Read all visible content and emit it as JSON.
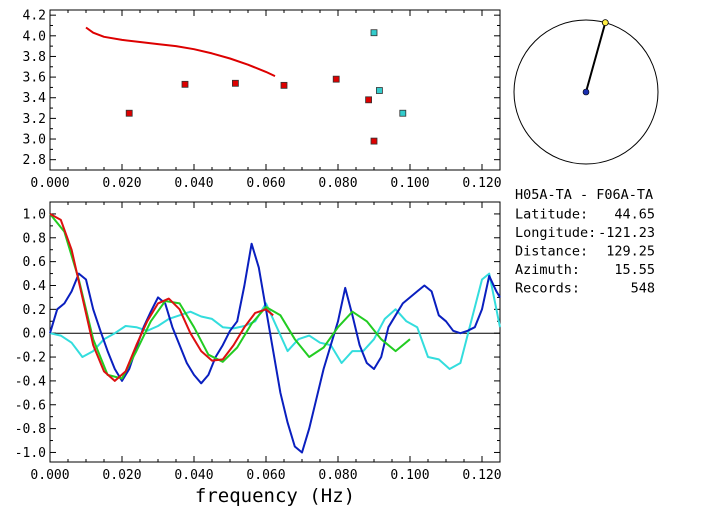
{
  "chart_data": [
    {
      "type": "scatter",
      "xlim": [
        0.0,
        0.125
      ],
      "ylim": [
        2.7,
        4.25
      ],
      "x_ticks": [
        "0.000",
        "0.020",
        "0.040",
        "0.060",
        "0.080",
        "0.100",
        "0.120"
      ],
      "y_ticks": [
        "2.8",
        "3.0",
        "3.2",
        "3.4",
        "3.6",
        "3.8",
        "4.0",
        "4.2"
      ],
      "series": [
        {
          "kind": "line",
          "color": "#dd0000",
          "x": [
            0.01,
            0.012,
            0.015,
            0.02,
            0.025,
            0.03,
            0.035,
            0.04,
            0.045,
            0.05,
            0.055,
            0.06,
            0.0625
          ],
          "y": [
            4.08,
            4.03,
            3.99,
            3.96,
            3.94,
            3.92,
            3.9,
            3.87,
            3.83,
            3.78,
            3.72,
            3.65,
            3.61
          ]
        },
        {
          "kind": "markers",
          "color": "#dd0000",
          "x": [
            0.022,
            0.0375,
            0.0515,
            0.065,
            0.0795,
            0.0885,
            0.09
          ],
          "y": [
            3.25,
            3.53,
            3.54,
            3.52,
            3.58,
            3.38,
            2.98
          ]
        },
        {
          "kind": "markers",
          "color": "#33cccc",
          "x": [
            0.09,
            0.0915,
            0.098
          ],
          "y": [
            4.03,
            3.47,
            3.25
          ]
        }
      ]
    },
    {
      "type": "line",
      "xlabel": "frequency (Hz)",
      "xlim": [
        0.0,
        0.125
      ],
      "ylim": [
        -1.08,
        1.1
      ],
      "x_ticks": [
        "0.000",
        "0.020",
        "0.040",
        "0.060",
        "0.080",
        "0.100",
        "0.120"
      ],
      "y_ticks": [
        "-1.0",
        "-0.8",
        "-0.6",
        "-0.4",
        "-0.2",
        "0.0",
        "0.2",
        "0.4",
        "0.6",
        "0.8",
        "1.0"
      ],
      "zero_line": true,
      "series": [
        {
          "color": "#33dddd",
          "x": [
            0.0,
            0.003,
            0.006,
            0.009,
            0.012,
            0.015,
            0.018,
            0.021,
            0.024,
            0.027,
            0.03,
            0.033,
            0.036,
            0.039,
            0.042,
            0.045,
            0.048,
            0.051,
            0.054,
            0.057,
            0.06,
            0.063,
            0.066,
            0.069,
            0.072,
            0.075,
            0.078,
            0.081,
            0.084,
            0.087,
            0.09,
            0.093,
            0.096,
            0.099,
            0.102,
            0.105,
            0.108,
            0.111,
            0.114,
            0.117,
            0.12,
            0.122,
            0.124,
            0.125
          ],
          "y": [
            0.0,
            -0.02,
            -0.08,
            -0.2,
            -0.15,
            -0.05,
            0.0,
            0.06,
            0.05,
            0.02,
            0.06,
            0.12,
            0.15,
            0.18,
            0.14,
            0.12,
            0.05,
            0.04,
            0.06,
            0.1,
            0.25,
            0.05,
            -0.15,
            -0.05,
            -0.02,
            -0.08,
            -0.1,
            -0.25,
            -0.15,
            -0.15,
            -0.05,
            0.12,
            0.2,
            0.1,
            0.05,
            -0.2,
            -0.22,
            -0.3,
            -0.25,
            0.1,
            0.45,
            0.5,
            0.2,
            0.05
          ]
        },
        {
          "color": "#0a1fbf",
          "x": [
            0.0,
            0.002,
            0.004,
            0.006,
            0.008,
            0.01,
            0.012,
            0.014,
            0.016,
            0.018,
            0.02,
            0.022,
            0.024,
            0.026,
            0.028,
            0.03,
            0.032,
            0.034,
            0.036,
            0.038,
            0.04,
            0.042,
            0.044,
            0.046,
            0.048,
            0.05,
            0.052,
            0.054,
            0.056,
            0.058,
            0.06,
            0.062,
            0.064,
            0.066,
            0.068,
            0.07,
            0.072,
            0.074,
            0.076,
            0.078,
            0.08,
            0.082,
            0.084,
            0.086,
            0.088,
            0.09,
            0.092,
            0.094,
            0.096,
            0.098,
            0.1,
            0.102,
            0.104,
            0.106,
            0.108,
            0.11,
            0.112,
            0.114,
            0.116,
            0.118,
            0.12,
            0.122,
            0.124,
            0.125
          ],
          "y": [
            0.0,
            0.2,
            0.25,
            0.35,
            0.5,
            0.45,
            0.2,
            0.02,
            -0.15,
            -0.3,
            -0.4,
            -0.3,
            -0.12,
            0.05,
            0.18,
            0.3,
            0.25,
            0.05,
            -0.1,
            -0.25,
            -0.35,
            -0.42,
            -0.35,
            -0.2,
            -0.1,
            0.02,
            0.1,
            0.4,
            0.75,
            0.55,
            0.2,
            -0.15,
            -0.5,
            -0.75,
            -0.95,
            -1.0,
            -0.8,
            -0.55,
            -0.3,
            -0.1,
            0.1,
            0.38,
            0.15,
            -0.1,
            -0.25,
            -0.3,
            -0.2,
            0.05,
            0.15,
            0.25,
            0.3,
            0.35,
            0.4,
            0.35,
            0.15,
            0.1,
            0.02,
            0.0,
            0.02,
            0.05,
            0.2,
            0.48,
            0.35,
            0.3
          ]
        },
        {
          "color": "#22cc22",
          "x": [
            0.0,
            0.004,
            0.008,
            0.012,
            0.016,
            0.02,
            0.024,
            0.028,
            0.032,
            0.036,
            0.04,
            0.044,
            0.048,
            0.052,
            0.056,
            0.06,
            0.064,
            0.068,
            0.072,
            0.076,
            0.08,
            0.084,
            0.088,
            0.092,
            0.096,
            0.1
          ],
          "y": [
            1.0,
            0.85,
            0.45,
            -0.05,
            -0.35,
            -0.38,
            -0.15,
            0.1,
            0.27,
            0.25,
            0.05,
            -0.18,
            -0.24,
            -0.12,
            0.08,
            0.22,
            0.15,
            -0.05,
            -0.2,
            -0.12,
            0.05,
            0.18,
            0.1,
            -0.05,
            -0.15,
            -0.05
          ]
        },
        {
          "color": "#dd1111",
          "x": [
            0.0,
            0.003,
            0.006,
            0.009,
            0.012,
            0.015,
            0.018,
            0.021,
            0.024,
            0.027,
            0.03,
            0.033,
            0.036,
            0.039,
            0.042,
            0.045,
            0.048,
            0.051,
            0.054,
            0.057,
            0.06,
            0.062
          ],
          "y": [
            1.0,
            0.95,
            0.7,
            0.3,
            -0.1,
            -0.32,
            -0.4,
            -0.32,
            -0.1,
            0.1,
            0.25,
            0.29,
            0.2,
            0.0,
            -0.15,
            -0.23,
            -0.22,
            -0.1,
            0.05,
            0.17,
            0.2,
            0.15
          ]
        }
      ]
    }
  ],
  "map": {
    "center_color": "#1a2faf",
    "marker_color": "#ffee44",
    "azimuth_deg": 15.55
  },
  "info": {
    "title": "H05A-TA - F06A-TA",
    "rows": [
      {
        "label": "Latitude:",
        "value": "44.65"
      },
      {
        "label": "Longitude:",
        "value": "-121.23"
      },
      {
        "label": "Distance:",
        "value": "129.25"
      },
      {
        "label": "Azimuth:",
        "value": "15.55"
      },
      {
        "label": "Records:",
        "value": "548"
      }
    ]
  }
}
